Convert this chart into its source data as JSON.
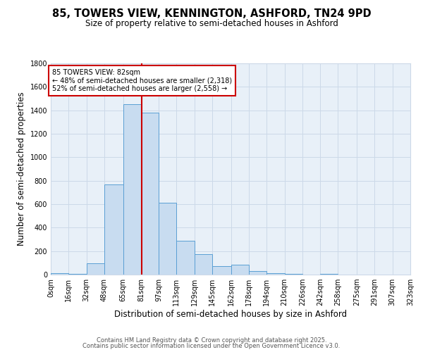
{
  "title1": "85, TOWERS VIEW, KENNINGTON, ASHFORD, TN24 9PD",
  "title2": "Size of property relative to semi-detached houses in Ashford",
  "xlabel": "Distribution of semi-detached houses by size in Ashford",
  "ylabel": "Number of semi-detached properties",
  "bin_edges": [
    0,
    16,
    32,
    48,
    65,
    81,
    97,
    113,
    129,
    145,
    162,
    178,
    194,
    210,
    226,
    242,
    258,
    275,
    291,
    307,
    323
  ],
  "bar_heights": [
    10,
    5,
    95,
    770,
    1450,
    1380,
    615,
    290,
    175,
    75,
    85,
    28,
    15,
    5,
    0,
    5,
    0,
    0,
    0,
    0
  ],
  "bar_color": "#c8dcf0",
  "bar_edge_color": "#5a9fd4",
  "property_size": 82,
  "vline_color": "#cc0000",
  "annotation_line1": "85 TOWERS VIEW: 82sqm",
  "annotation_line2": "← 48% of semi-detached houses are smaller (2,318)",
  "annotation_line3": "52% of semi-detached houses are larger (2,558) →",
  "annotation_box_color": "#ffffff",
  "annotation_box_edge": "#cc0000",
  "grid_color": "#ccd9e8",
  "background_color": "#e8f0f8",
  "footer1": "Contains HM Land Registry data © Crown copyright and database right 2025.",
  "footer2": "Contains public sector information licensed under the Open Government Licence v3.0.",
  "ylim": [
    0,
    1800
  ],
  "tick_labels": [
    "0sqm",
    "16sqm",
    "32sqm",
    "48sqm",
    "65sqm",
    "81sqm",
    "97sqm",
    "113sqm",
    "129sqm",
    "145sqm",
    "162sqm",
    "178sqm",
    "194sqm",
    "210sqm",
    "226sqm",
    "242sqm",
    "258sqm",
    "275sqm",
    "291sqm",
    "307sqm",
    "323sqm"
  ]
}
